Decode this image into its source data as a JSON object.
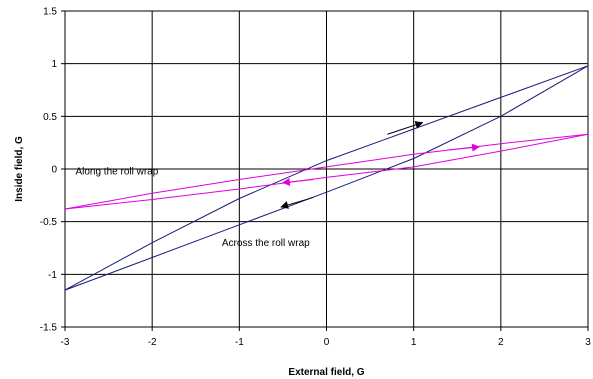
{
  "chart_data": {
    "type": "line",
    "title": "",
    "xlabel": "External field, G",
    "ylabel": "Inside field, G",
    "xlim": [
      -3,
      3
    ],
    "ylim": [
      -1.5,
      1.5
    ],
    "xticks": [
      -3,
      -2,
      -1,
      0,
      1,
      2,
      3
    ],
    "yticks": [
      -1.5,
      -1,
      -0.5,
      0,
      0.5,
      1,
      1.5
    ],
    "grid": true,
    "legend": "none",
    "series": [
      {
        "color": "#1a1a7a",
        "loops": [
          [
            [
              -3,
              -1.15
            ],
            [
              -2,
              -0.7
            ],
            [
              -1,
              -0.28
            ],
            [
              0,
              0.08
            ],
            [
              1,
              0.38
            ],
            [
              2,
              0.68
            ],
            [
              3,
              0.98
            ]
          ],
          [
            [
              3,
              0.98
            ],
            [
              2,
              0.5
            ],
            [
              1,
              0.1
            ],
            [
              0,
              -0.22
            ],
            [
              -1,
              -0.53
            ],
            [
              -2,
              -0.84
            ],
            [
              -3,
              -1.15
            ]
          ]
        ],
        "arrows": [
          {
            "x": 1.1,
            "y": 0.44,
            "from_x": 0.7,
            "from_y": 0.33
          },
          {
            "x": -0.52,
            "y": -0.36,
            "from_x": -0.15,
            "from_y": -0.27
          }
        ]
      },
      {
        "color": "#e000e0",
        "loops": [
          [
            [
              -3,
              -0.38
            ],
            [
              -2,
              -0.23
            ],
            [
              -1,
              -0.1
            ],
            [
              0,
              0.02
            ],
            [
              1,
              0.14
            ],
            [
              2,
              0.24
            ],
            [
              3,
              0.33
            ]
          ],
          [
            [
              3,
              0.33
            ],
            [
              2,
              0.17
            ],
            [
              1,
              0.02
            ],
            [
              0,
              -0.08
            ],
            [
              -1,
              -0.19
            ],
            [
              -2,
              -0.29
            ],
            [
              -3,
              -0.38
            ]
          ]
        ],
        "arrows": [
          {
            "x": 1.75,
            "y": 0.21,
            "from_x": 1.4,
            "from_y": 0.18
          },
          {
            "x": -0.5,
            "y": -0.13,
            "from_x": -0.15,
            "from_y": -0.1
          }
        ]
      }
    ],
    "annotations": [
      {
        "text": "Along the roll wrap",
        "x": -2.88,
        "y": -0.05
      },
      {
        "text": "Across the roll wrap",
        "x": -1.2,
        "y": -0.73
      }
    ]
  }
}
